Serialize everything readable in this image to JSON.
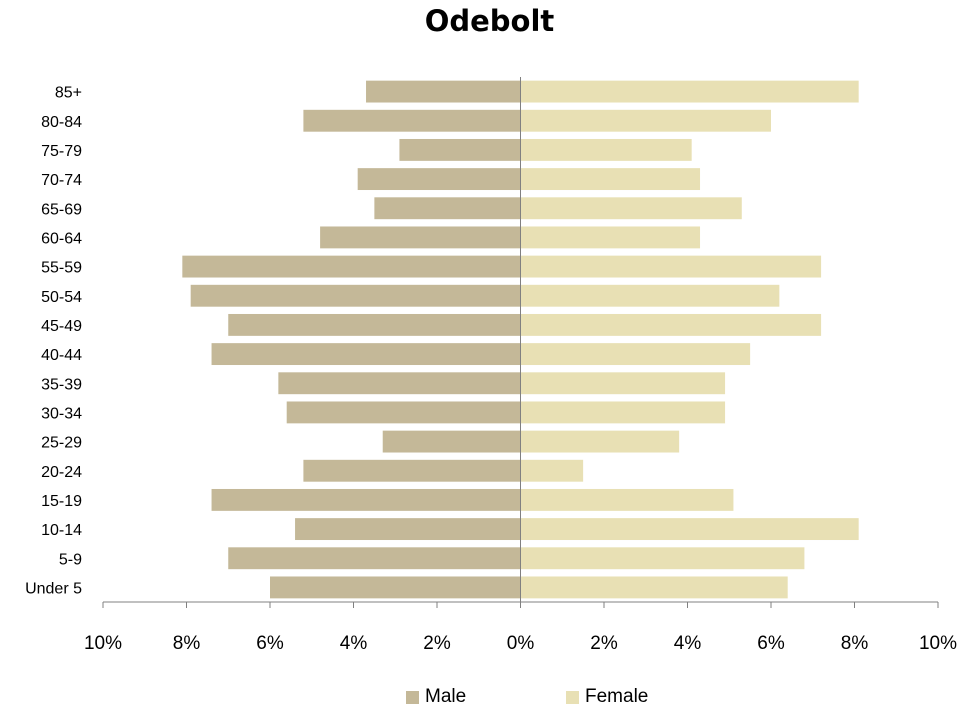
{
  "chart_data": {
    "type": "bar",
    "orientation": "horizontal",
    "title": "Odebolt",
    "categories": [
      "85+",
      "80-84",
      "75-79",
      "70-74",
      "65-69",
      "60-64",
      "55-59",
      "50-54",
      "45-49",
      "40-44",
      "35-39",
      "30-34",
      "25-29",
      "20-24",
      "15-19",
      "10-14",
      "5-9",
      "Under 5"
    ],
    "series": [
      {
        "name": "Male",
        "color": "#c4b898",
        "values": [
          -3.7,
          -5.2,
          -2.9,
          -3.9,
          -3.5,
          -4.8,
          -8.1,
          -7.9,
          -7.0,
          -7.4,
          -5.8,
          -5.6,
          -3.3,
          -5.2,
          -7.4,
          -5.4,
          -7.0,
          -6.0
        ]
      },
      {
        "name": "Female",
        "color": "#e8e0b4",
        "values": [
          8.1,
          6.0,
          4.1,
          4.3,
          5.3,
          4.3,
          7.2,
          6.2,
          7.2,
          5.5,
          4.9,
          4.9,
          3.8,
          1.5,
          5.1,
          8.1,
          6.8,
          6.4
        ]
      }
    ],
    "xlim": [
      -10,
      10
    ],
    "xticks": [
      -10,
      -8,
      -6,
      -4,
      -2,
      0,
      2,
      4,
      6,
      8,
      10
    ],
    "xtick_labels": [
      "10%",
      "8%",
      "6%",
      "4%",
      "2%",
      "0%",
      "2%",
      "4%",
      "6%",
      "8%",
      "10%"
    ],
    "xlabel": "",
    "ylabel": "",
    "grid": false,
    "legend_position": "bottom"
  }
}
